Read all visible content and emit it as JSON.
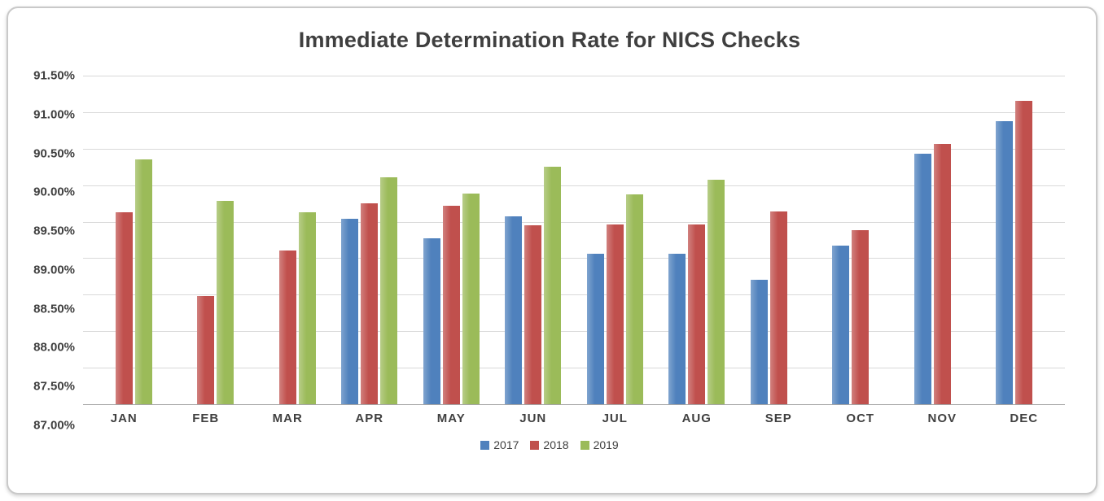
{
  "chart_data": {
    "type": "bar",
    "title": "Immediate Determination Rate for NICS Checks",
    "categories": [
      "JAN",
      "FEB",
      "MAR",
      "APR",
      "MAY",
      "JUN",
      "JUL",
      "AUG",
      "SEP",
      "OCT",
      "NOV",
      "DEC"
    ],
    "series": [
      {
        "name": "2017",
        "color": "#4F81BD",
        "values": [
          null,
          null,
          null,
          89.54,
          89.27,
          89.57,
          89.06,
          89.06,
          88.7,
          89.17,
          90.43,
          90.88
        ]
      },
      {
        "name": "2018",
        "color": "#C0504D",
        "values": [
          89.63,
          88.48,
          89.11,
          89.75,
          89.72,
          89.45,
          89.46,
          89.46,
          89.64,
          89.38,
          90.57,
          91.15
        ]
      },
      {
        "name": "2019",
        "color": "#9BBB59",
        "values": [
          90.35,
          89.78,
          89.63,
          90.11,
          89.88,
          90.25,
          89.87,
          90.07,
          null,
          null,
          null,
          null
        ]
      }
    ],
    "ylim": [
      87.0,
      91.5
    ],
    "ytick_step": 0.5,
    "ytick_labels": [
      "91.50%",
      "91.00%",
      "90.50%",
      "90.00%",
      "89.50%",
      "89.00%",
      "88.50%",
      "88.00%",
      "87.50%",
      "87.00%"
    ],
    "xlabel": "",
    "ylabel": "",
    "grid": true,
    "legend_position": "bottom"
  }
}
